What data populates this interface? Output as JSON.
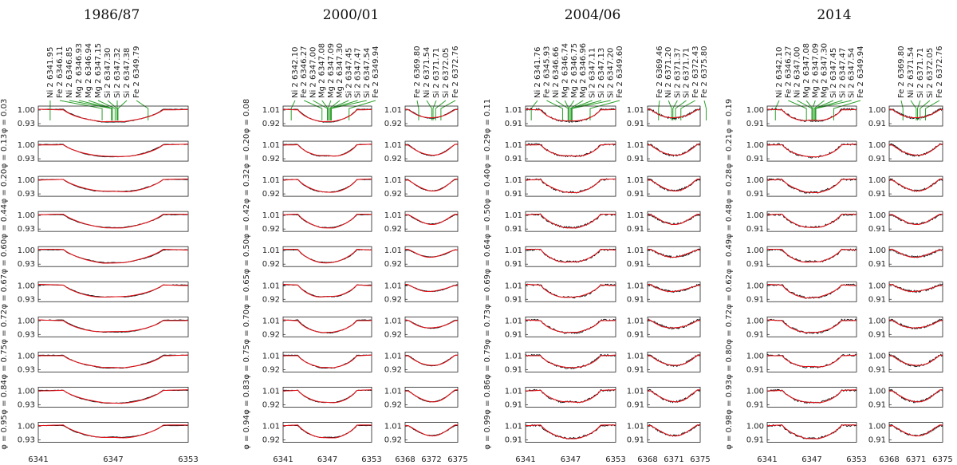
{
  "chart_data": {
    "type": "line",
    "colors": {
      "observed": "#111111",
      "model": "#e0141a",
      "line_ids": "#2ca02c"
    },
    "epochs": [
      {
        "title": "1986/87",
        "phases": [
          "0.03",
          "0.13",
          "0.20",
          "0.44",
          "0.60",
          "0.67",
          "0.72",
          "0.75",
          "0.84",
          "0.95"
        ],
        "ytick_top": "1.00",
        "ytick_bottom": "0.93",
        "panels": [
          {
            "xlim": [
              6341,
              6353
            ],
            "xticks": [
              "6341",
              "6347",
              "6353"
            ],
            "line_ids": [
              {
                "label": "Ni 2 6341.95",
                "wl": 6341.95
              },
              {
                "label": "Fe 2 6346.11",
                "wl": 6346.11
              },
              {
                "label": "Ni 2 6346.85",
                "wl": 6346.85
              },
              {
                "label": "Mg 2 6346.93",
                "wl": 6346.93
              },
              {
                "label": "Mg 2 6346.94",
                "wl": 6346.94
              },
              {
                "label": "Mg 2 6347.15",
                "wl": 6347.15
              },
              {
                "label": "Si 2 6347.30",
                "wl": 6347.3
              },
              {
                "label": "Si 2 6347.32",
                "wl": 6347.32
              },
              {
                "label": "Si 2 6347.38",
                "wl": 6347.38
              },
              {
                "label": "Fe 2 6349.79",
                "wl": 6349.79
              }
            ]
          }
        ]
      },
      {
        "title": "2000/01",
        "phases": [
          "0.08",
          "0.20",
          "0.32",
          "0.42",
          "0.50",
          "0.65",
          "0.70",
          "0.75",
          "0.83",
          "0.94"
        ],
        "ytick_top": "1.01",
        "ytick_bottom": "0.92",
        "panels": [
          {
            "xlim": [
              6341,
              6353
            ],
            "xticks": [
              "6341",
              "6347",
              "6353"
            ],
            "line_ids": [
              {
                "label": "Ni 2 6342.10",
                "wl": 6342.1
              },
              {
                "label": "Fe 2 6346.27",
                "wl": 6346.27
              },
              {
                "label": "Ni 2 6347.00",
                "wl": 6347.0
              },
              {
                "label": "Mg 2 6347.08",
                "wl": 6347.08
              },
              {
                "label": "Mg 2 6347.09",
                "wl": 6347.09
              },
              {
                "label": "Mg 2 6347.30",
                "wl": 6347.3
              },
              {
                "label": "Si 2 6347.45",
                "wl": 6347.45
              },
              {
                "label": "Si 2 6347.47",
                "wl": 6347.47
              },
              {
                "label": "Si 2 6347.54",
                "wl": 6347.54
              },
              {
                "label": "Fe 2 6349.94",
                "wl": 6349.94
              }
            ]
          },
          {
            "xlim": [
              6368,
              6375
            ],
            "xticks": [
              "6368",
              "6372",
              "6375"
            ],
            "line_ids": [
              {
                "label": "Fe 2 6369.80",
                "wl": 6369.8
              },
              {
                "label": "Ni 2 6371.54",
                "wl": 6371.54
              },
              {
                "label": "Si 2 6371.71",
                "wl": 6371.71
              },
              {
                "label": "Si 2 6372.05",
                "wl": 6372.05
              },
              {
                "label": "Fe 2 6372.76",
                "wl": 6372.76
              }
            ]
          }
        ]
      },
      {
        "title": "2004/06",
        "phases": [
          "0.11",
          "0.29",
          "0.40",
          "0.50",
          "0.64",
          "0.69",
          "0.73",
          "0.79",
          "0.86",
          "0.99"
        ],
        "ytick_top": "1.01",
        "ytick_bottom": "0.91",
        "panels": [
          {
            "xlim": [
              6341,
              6353
            ],
            "xticks": [
              "6341",
              "6347",
              "6353"
            ],
            "line_ids": [
              {
                "label": "Ni 2 6341.76",
                "wl": 6341.76
              },
              {
                "label": "Fe 2 6345.93",
                "wl": 6345.93
              },
              {
                "label": "Ni 2 6346.66",
                "wl": 6346.66
              },
              {
                "label": "Mg 2 6346.74",
                "wl": 6346.74
              },
              {
                "label": "Mg 2 6346.75",
                "wl": 6346.75
              },
              {
                "label": "Mg 2 6346.96",
                "wl": 6346.96
              },
              {
                "label": "Si 2 6347.11",
                "wl": 6347.11
              },
              {
                "label": "Si 2 6347.13",
                "wl": 6347.13
              },
              {
                "label": "Si 2 6347.20",
                "wl": 6347.2
              },
              {
                "label": "Fe 2 6349.60",
                "wl": 6349.6
              }
            ]
          },
          {
            "xlim": [
              6368,
              6375
            ],
            "xticks": [
              "6368",
              "6371",
              "6375"
            ],
            "line_ids": [
              {
                "label": "Fe 2 6369.46",
                "wl": 6369.46
              },
              {
                "label": "Ni 2 6371.20",
                "wl": 6371.2
              },
              {
                "label": "Si 2 6371.37",
                "wl": 6371.37
              },
              {
                "label": "Si 2 6371.71",
                "wl": 6371.71
              },
              {
                "label": "Fe 2 6372.43",
                "wl": 6372.43
              },
              {
                "label": "Fe 2 6375.80",
                "wl": 6375.8
              }
            ]
          }
        ]
      },
      {
        "title": "2014",
        "phases": [
          "0.19",
          "0.21",
          "0.28",
          "0.48",
          "0.49",
          "0.62",
          "0.72",
          "0.80",
          "0.93",
          "0.98"
        ],
        "ytick_top": "1.00",
        "ytick_bottom": "0.91",
        "panels": [
          {
            "xlim": [
              6341,
              6353
            ],
            "xticks": [
              "6341",
              "6347",
              "6353"
            ],
            "line_ids": [
              {
                "label": "Ni 2 6342.10",
                "wl": 6342.1
              },
              {
                "label": "Fe 2 6346.27",
                "wl": 6346.27
              },
              {
                "label": "Ni 2 6347.00",
                "wl": 6347.0
              },
              {
                "label": "Mg 2 6347.08",
                "wl": 6347.08
              },
              {
                "label": "Mg 2 6347.09",
                "wl": 6347.09
              },
              {
                "label": "Mg 2 6347.30",
                "wl": 6347.3
              },
              {
                "label": "Si 2 6347.45",
                "wl": 6347.45
              },
              {
                "label": "Si 2 6347.47",
                "wl": 6347.47
              },
              {
                "label": "Si 2 6347.54",
                "wl": 6347.54
              },
              {
                "label": "Fe 2 6349.94",
                "wl": 6349.94
              }
            ]
          },
          {
            "xlim": [
              6368,
              6375
            ],
            "xticks": [
              "6368",
              "6371",
              "6375"
            ],
            "line_ids": [
              {
                "label": "Fe 2 6369.80",
                "wl": 6369.8
              },
              {
                "label": "Ni 2 6371.54",
                "wl": 6371.54
              },
              {
                "label": "Si 2 6371.71",
                "wl": 6371.71
              },
              {
                "label": "Si 2 6372.05",
                "wl": 6372.05
              },
              {
                "label": "Fe 2 6372.76",
                "wl": 6372.76
              }
            ]
          }
        ]
      }
    ]
  }
}
